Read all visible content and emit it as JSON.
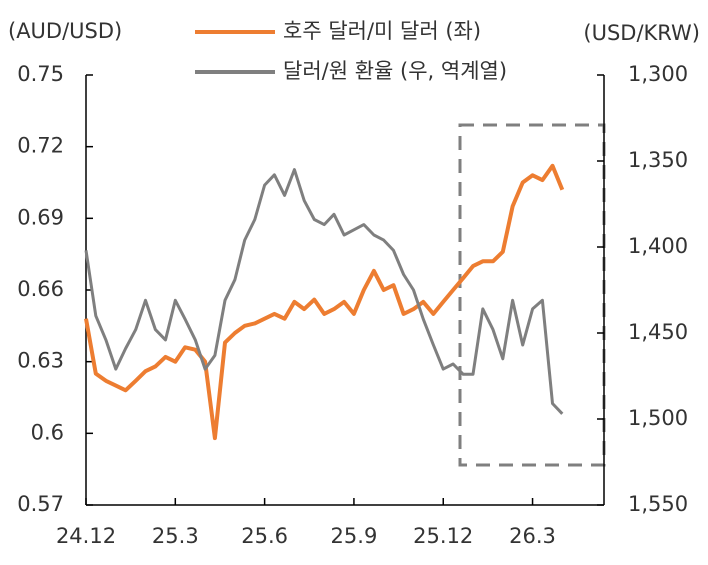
{
  "chart_data": {
    "type": "line",
    "y_axis_label": "(AUD/USD)",
    "y2_axis_label": "(USD/KRW)",
    "x": [
      0,
      0.33,
      0.67,
      1,
      1.33,
      1.67,
      2,
      2.33,
      2.67,
      3,
      3.33,
      3.67,
      4,
      4.33,
      4.67,
      5,
      5.33,
      5.67,
      6,
      6.33,
      6.67,
      7,
      7.33,
      7.67,
      8,
      8.33,
      8.67,
      9,
      9.33,
      9.67,
      10,
      10.33,
      10.67,
      11,
      11.33,
      11.67,
      12,
      12.33,
      12.67,
      13,
      13.33,
      13.67,
      14,
      14.33,
      14.67,
      15,
      15.33,
      15.67,
      16
    ],
    "xlim": [
      0,
      17.4
    ],
    "xticks": [
      {
        "value": 0,
        "label": "24.12"
      },
      {
        "value": 3,
        "label": "25.3"
      },
      {
        "value": 6,
        "label": "25.6"
      },
      {
        "value": 9,
        "label": "25.9"
      },
      {
        "value": 12,
        "label": "25.12"
      },
      {
        "value": 15,
        "label": "26.3"
      }
    ],
    "ylim": [
      0.57,
      0.75
    ],
    "yticks": [
      0.57,
      {
        "value": 0.6,
        "label": "0.6"
      },
      0.63,
      0.66,
      0.69,
      0.72,
      0.75
    ],
    "y2lim": [
      1550,
      1300
    ],
    "y2_inverted": true,
    "y2ticks": [
      {
        "value": 1300,
        "label": "1,300"
      },
      {
        "value": 1350,
        "label": "1,350"
      },
      {
        "value": 1400,
        "label": "1,400"
      },
      {
        "value": 1450,
        "label": "1,450"
      },
      {
        "value": 1500,
        "label": "1,500"
      },
      {
        "value": 1550,
        "label": "1,550"
      }
    ],
    "legend": "top",
    "grid": false,
    "series": [
      {
        "name": "호주 달러/미 달러 (좌)",
        "color": "#ed7d31",
        "values": [
          0.648,
          0.625,
          0.622,
          0.62,
          0.618,
          0.622,
          0.626,
          0.628,
          0.632,
          0.63,
          0.636,
          0.635,
          0.63,
          0.598,
          0.638,
          0.642,
          0.645,
          0.646,
          0.648,
          0.65,
          0.648,
          0.655,
          0.652,
          0.656,
          0.65,
          0.652,
          0.655,
          0.65,
          0.66,
          0.668,
          0.66,
          0.662,
          0.65,
          0.652,
          0.655,
          0.65,
          0.655,
          0.66,
          0.665,
          0.67,
          0.672,
          0.672,
          0.676,
          0.695,
          0.705,
          0.708,
          0.706,
          0.712,
          0.702
        ]
      },
      {
        "name": "달러/원 환율 (우, 역계열)",
        "color": "#7f7f7f",
        "axis": "y2",
        "values": [
          1402,
          1440,
          1454,
          1471,
          1459,
          1448,
          1431,
          1448,
          1454,
          1431,
          1442,
          1454,
          1471,
          1463,
          1431,
          1419,
          1396,
          1384,
          1364,
          1358,
          1370,
          1355,
          1373,
          1384,
          1387,
          1381,
          1393,
          1390,
          1387,
          1393,
          1396,
          1402,
          1416,
          1425,
          1442,
          1457,
          1471,
          1468,
          1474,
          1474,
          1436,
          1448,
          1465,
          1431,
          1457,
          1436,
          1431,
          1491,
          1497
        ]
      }
    ]
  }
}
